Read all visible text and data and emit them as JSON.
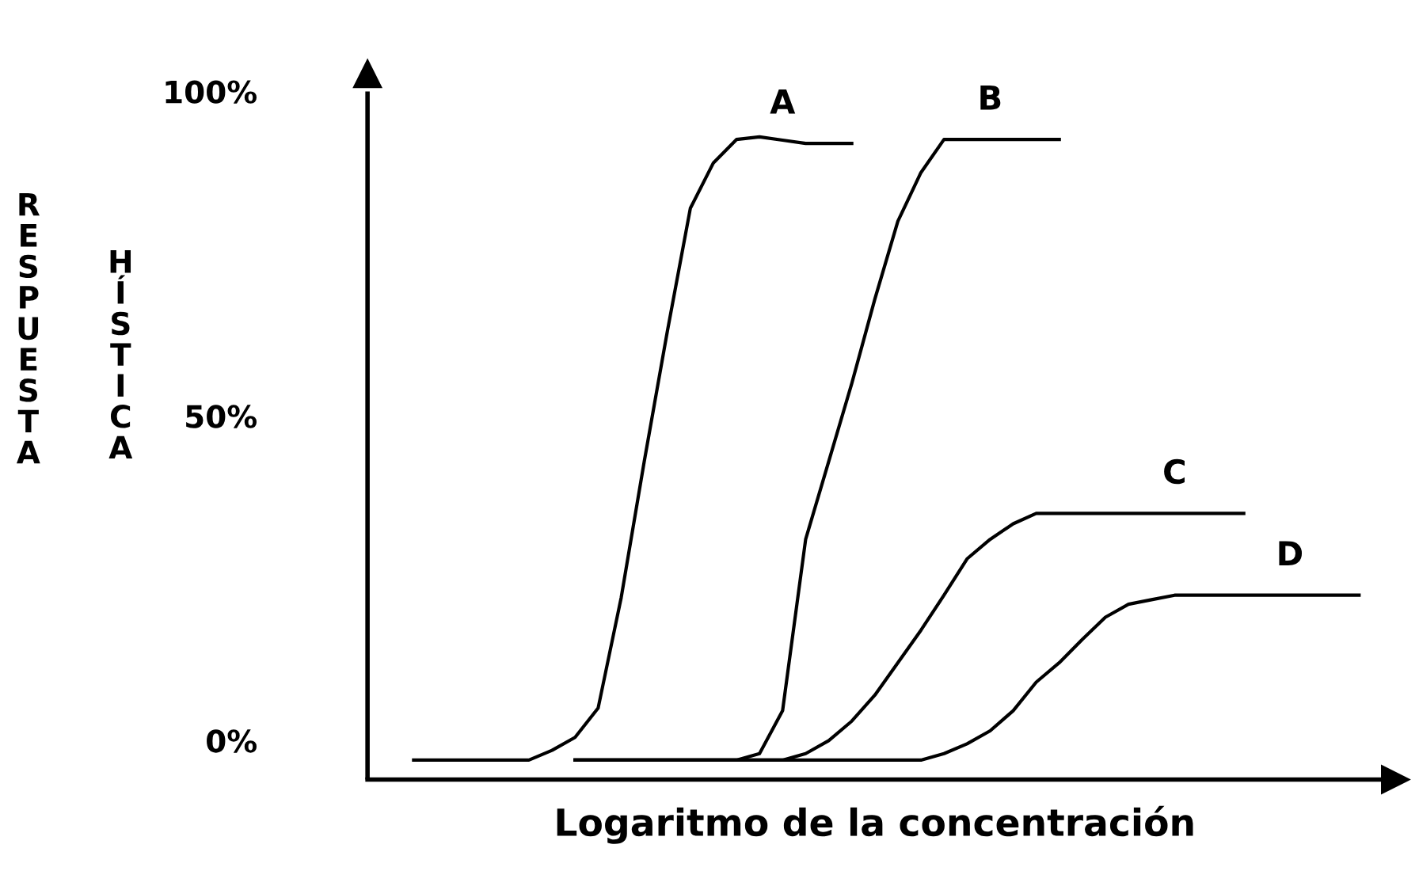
{
  "chart_data": {
    "type": "line",
    "xlabel": "Logaritmo de la concentración",
    "ylabel": "RESPUESTA HÍSTICA",
    "categories": [
      null,
      null,
      null,
      null,
      null,
      null,
      null,
      null,
      null,
      null,
      null,
      null,
      null,
      null,
      null,
      null,
      null,
      null,
      null,
      null,
      null,
      null,
      null,
      null,
      null,
      null,
      null,
      null,
      null,
      null,
      null,
      null,
      null,
      null,
      null,
      null,
      null,
      null,
      null,
      null,
      null,
      null
    ],
    "series": [
      {
        "name": "A",
        "color": "#000000",
        "values": [
          -3,
          -3,
          -3,
          -3,
          -3,
          -3,
          -1.5,
          0.5,
          5,
          22,
          43,
          63,
          82,
          89,
          92.6,
          93,
          92.5,
          92,
          92,
          92,
          null,
          null,
          null,
          null,
          null,
          null,
          null,
          null,
          null,
          null,
          null,
          null,
          null,
          null,
          null,
          null,
          null,
          null,
          null,
          null,
          null,
          null
        ]
      },
      {
        "name": "B",
        "color": "#000000",
        "values": [
          null,
          null,
          null,
          null,
          null,
          null,
          null,
          -3,
          -3,
          -3,
          -3,
          -3,
          -3,
          -3,
          -3,
          -2,
          4.6,
          31,
          43,
          55,
          68,
          80,
          87.5,
          92.6,
          92.6,
          92.6,
          92.6,
          92.6,
          92.6,
          null,
          null,
          null,
          null,
          null,
          null,
          null,
          null,
          null,
          null,
          null,
          null,
          null
        ]
      },
      {
        "name": "C",
        "color": "#000000",
        "values": [
          null,
          null,
          null,
          null,
          null,
          null,
          null,
          -3,
          -3,
          -3,
          -3,
          -3,
          -3,
          -3,
          -3,
          -3,
          -3,
          -2,
          0,
          3,
          7,
          12,
          17,
          22.4,
          28,
          31,
          33.4,
          35,
          35,
          35,
          35,
          35,
          35,
          35,
          35,
          35,
          35,
          null,
          null,
          null,
          null,
          null
        ]
      },
      {
        "name": "D",
        "color": "#000000",
        "values": [
          null,
          null,
          null,
          null,
          null,
          null,
          null,
          -3,
          -3,
          -3,
          -3,
          -3,
          -3,
          -3,
          -3,
          -3,
          -3,
          -3,
          -3,
          -3,
          -3,
          -3,
          -3,
          -2,
          -0.5,
          1.5,
          4.6,
          9,
          12,
          15.6,
          19,
          21,
          21.7,
          22.4,
          22.4,
          22.4,
          22.4,
          22.4,
          22.4,
          22.4,
          22.4,
          22.4
        ]
      }
    ],
    "ylim": [
      -6,
      100
    ],
    "yticks": [
      {
        "value": 0,
        "label": "0%"
      },
      {
        "value": 50,
        "label": "50%"
      },
      {
        "value": 100,
        "label": "100%"
      }
    ],
    "tick_labels": "y",
    "grid": false,
    "legend": false,
    "marker": "none",
    "line_style": "solid"
  }
}
